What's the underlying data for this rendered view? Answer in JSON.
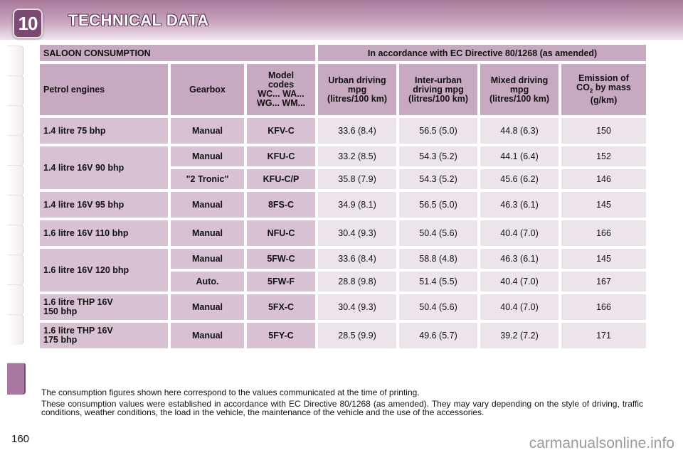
{
  "header": {
    "chapter_number": "10",
    "title": "TECHNICAL DATA"
  },
  "table": {
    "title_left": "SALOON CONSUMPTION",
    "title_right": "In accordance with EC Directive 80/1268 (as amended)",
    "columns": {
      "engine": "Petrol engines",
      "gearbox": "Gearbox",
      "model_codes": [
        "Model",
        "codes",
        "WC... WA...",
        "WG... WM..."
      ],
      "urban": [
        "Urban driving",
        "mpg",
        "(litres/100 km)"
      ],
      "interurban": [
        "Inter-urban",
        "driving mpg",
        "(litres/100 km)"
      ],
      "mixed": [
        "Mixed driving",
        "mpg",
        "(litres/100 km)"
      ],
      "emission": [
        "Emission of",
        "CO",
        "2",
        " by mass",
        "(g/km)"
      ]
    },
    "rows": [
      {
        "engine": [
          "1.4 litre 75 bhp"
        ],
        "gearbox": "Manual",
        "code": "KFV-C",
        "urban": "33.6 (8.4)",
        "interurban": "56.5 (5.0)",
        "mixed": "44.8 (6.3)",
        "co2": "150"
      },
      {
        "engine": [
          "1.4 litre 16V 90 bhp"
        ],
        "gearbox": "Manual",
        "code": "KFU-C",
        "urban": "33.2 (8.5)",
        "interurban": "54.3 (5.2)",
        "mixed": "44.1 (6.4)",
        "co2": "152"
      },
      {
        "gearbox": "\"2 Tronic\"",
        "code": "KFU-C/P",
        "urban": "35.8 (7.9)",
        "interurban": "54.3 (5.2)",
        "mixed": "45.6 (6.2)",
        "co2": "146"
      },
      {
        "engine": [
          "1.4 litre 16V 95 bhp"
        ],
        "gearbox": "Manual",
        "code": "8FS-C",
        "urban": "34.9 (8.1)",
        "interurban": "56.5 (5.0)",
        "mixed": "46.3 (6.1)",
        "co2": "145"
      },
      {
        "engine": [
          "1.6 litre 16V 110 bhp"
        ],
        "gearbox": "Manual",
        "code": "NFU-C",
        "urban": "30.4 (9.3)",
        "interurban": "50.4 (5.6)",
        "mixed": "40.4 (7.0)",
        "co2": "166"
      },
      {
        "engine": [
          "1.6 litre 16V 120 bhp"
        ],
        "gearbox": "Manual",
        "code": "5FW-C",
        "urban": "33.6 (8.4)",
        "interurban": "58.8 (4.8)",
        "mixed": "46.3 (6.1)",
        "co2": "145"
      },
      {
        "gearbox": "Auto.",
        "code": "5FW-F",
        "urban": "28.8 (9.8)",
        "interurban": "51.4 (5.5)",
        "mixed": "40.4 (7.0)",
        "co2": "167"
      },
      {
        "engine": [
          "1.6 litre THP 16V",
          "150 bhp"
        ],
        "gearbox": "Manual",
        "code": "5FX-C",
        "urban": "30.4 (9.3)",
        "interurban": "50.4 (5.6)",
        "mixed": "40.4 (7.0)",
        "co2": "166"
      },
      {
        "engine": [
          "1.6 litre THP 16V",
          "175 bhp"
        ],
        "gearbox": "Manual",
        "code": "5FY-C",
        "urban": "28.5 (9.9)",
        "interurban": "49.6 (5.7)",
        "mixed": "39.2 (7.2)",
        "co2": "171"
      }
    ]
  },
  "notes": [
    "The consumption figures shown here correspond to the values communicated at the time of printing.",
    "These consumption values were established in accordance with EC Directive 80/1268 (as amended). They may vary depending on the style of driving, traffic conditions, weather conditions, the load in the vehicle, the maintenance of the vehicle and the use of the accessories."
  ],
  "page_number": "160",
  "watermark": "carmanualsonline.info"
}
